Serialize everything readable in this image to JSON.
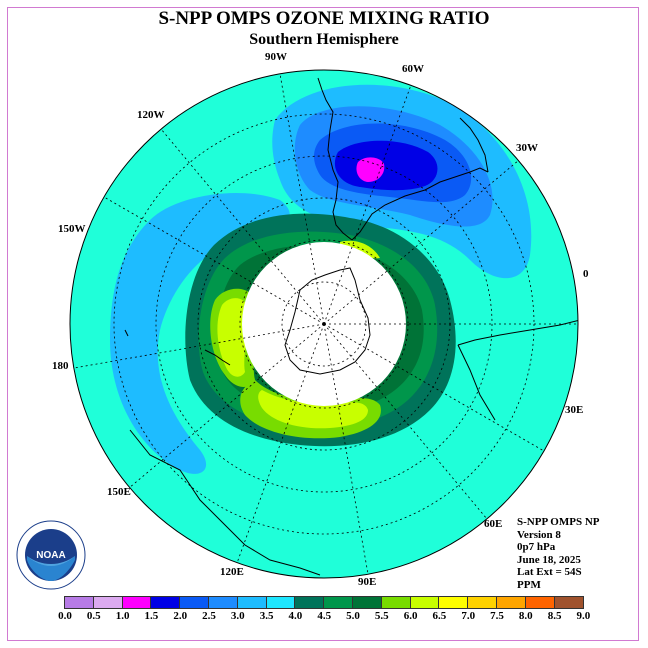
{
  "header": {
    "title": "S-NPP OMPS OZONE MIXING RATIO",
    "subtitle": "Southern Hemisphere"
  },
  "longitude_labels": [
    "90W",
    "60W",
    "120W",
    "30W",
    "150W",
    "0",
    "180",
    "30E",
    "150E",
    "60E",
    "120E",
    "90E"
  ],
  "info": {
    "line1": "S-NPP OMPS NP",
    "line2": "Version 8",
    "line3": "0p7 hPa",
    "line4": "June 18, 2025",
    "line5": "Lat Ext = 54S",
    "line6": "PPM"
  },
  "logo": {
    "text": "NOAA",
    "ring_text": "NATIONAL OCEANIC AND ATMOSPHERIC ADMINISTRATION · U.S. DEPARTMENT OF COMMERCE"
  },
  "colorbar": {
    "ticks": [
      "0.0",
      "0.5",
      "1.0",
      "1.5",
      "2.0",
      "2.5",
      "3.0",
      "3.5",
      "4.0",
      "4.5",
      "5.0",
      "5.5",
      "6.0",
      "6.5",
      "7.0",
      "7.5",
      "8.0",
      "8.5",
      "9.0"
    ],
    "colors": [
      "#b77be6",
      "#dcaaf0",
      "#ff00ff",
      "#0000e6",
      "#0a5af5",
      "#1e8cff",
      "#1ebcff",
      "#1ee6ff",
      "#00735a",
      "#00964b",
      "#007337",
      "#78dc00",
      "#c8ff00",
      "#ffff00",
      "#ffd200",
      "#ffa500",
      "#ff6400",
      "#ff0000",
      "#a0522d"
    ]
  },
  "colors": {
    "ocean_base": "#1fffd9",
    "frame": "#d17ad1",
    "polar_mask": "#ffffff"
  }
}
